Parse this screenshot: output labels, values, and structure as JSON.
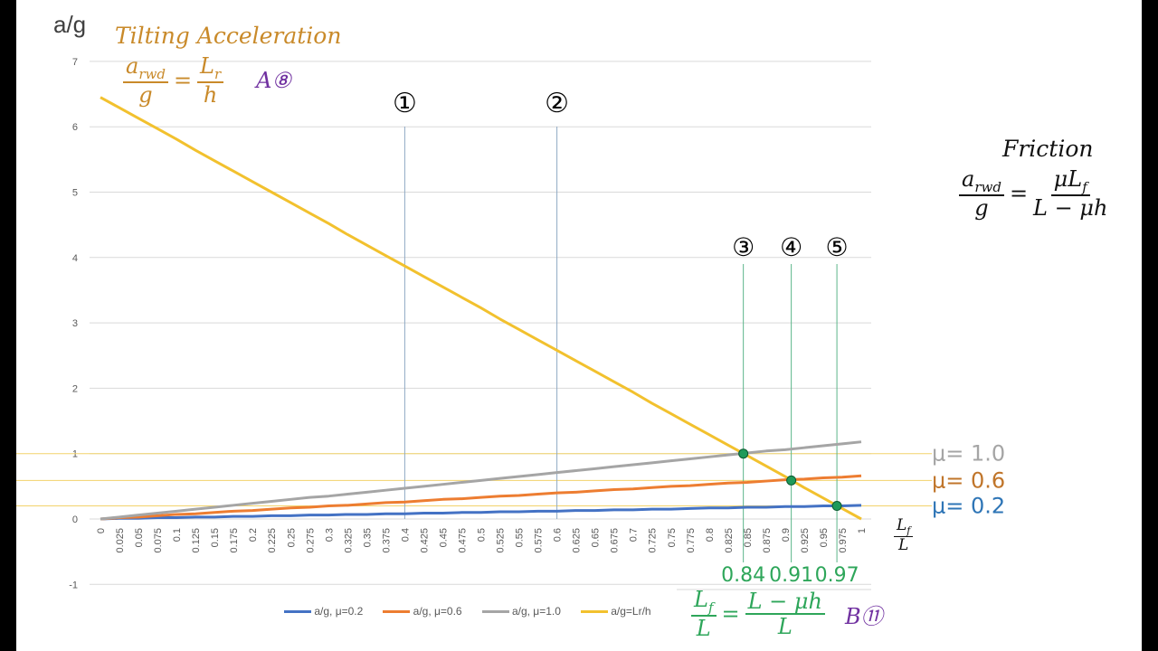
{
  "chart_data": {
    "type": "line",
    "ylabel": "a/g",
    "xlabel_num": "L",
    "xlabel_num_sub": "f",
    "xlabel_den": "L",
    "ylim": [
      -1,
      7
    ],
    "yticks": [
      "-1",
      "0",
      "1",
      "2",
      "3",
      "4",
      "5",
      "6",
      "7"
    ],
    "x": [
      0,
      0.025,
      0.05,
      0.075,
      0.1,
      0.125,
      0.15,
      0.175,
      0.2,
      0.225,
      0.25,
      0.275,
      0.3,
      0.325,
      0.35,
      0.375,
      0.4,
      0.425,
      0.45,
      0.475,
      0.5,
      0.525,
      0.55,
      0.575,
      0.6,
      0.625,
      0.65,
      0.675,
      0.7,
      0.725,
      0.75,
      0.775,
      0.8,
      0.825,
      0.85,
      0.875,
      0.9,
      0.925,
      0.95,
      0.975,
      1
    ],
    "grid": "horizontal",
    "legend": "bottom",
    "series": [
      {
        "name": "a/g, μ=0.2",
        "color": "#4472c4",
        "values": [
          0,
          0.01,
          0.01,
          0.02,
          0.02,
          0.03,
          0.03,
          0.04,
          0.04,
          0.05,
          0.05,
          0.06,
          0.06,
          0.07,
          0.07,
          0.08,
          0.08,
          0.09,
          0.09,
          0.1,
          0.1,
          0.11,
          0.11,
          0.12,
          0.12,
          0.13,
          0.13,
          0.14,
          0.14,
          0.15,
          0.15,
          0.16,
          0.17,
          0.17,
          0.18,
          0.18,
          0.19,
          0.19,
          0.2,
          0.2,
          0.21
        ]
      },
      {
        "name": "a/g, μ=0.6",
        "color": "#ed7d31",
        "values": [
          0,
          0.02,
          0.03,
          0.05,
          0.07,
          0.08,
          0.1,
          0.12,
          0.13,
          0.15,
          0.17,
          0.18,
          0.2,
          0.21,
          0.23,
          0.25,
          0.26,
          0.28,
          0.3,
          0.31,
          0.33,
          0.35,
          0.36,
          0.38,
          0.4,
          0.41,
          0.43,
          0.45,
          0.46,
          0.48,
          0.5,
          0.51,
          0.53,
          0.55,
          0.56,
          0.58,
          0.6,
          0.61,
          0.63,
          0.64,
          0.66
        ]
      },
      {
        "name": "a/g, μ=1.0",
        "color": "#a5a5a5",
        "values": [
          0,
          0.03,
          0.06,
          0.09,
          0.12,
          0.15,
          0.18,
          0.21,
          0.24,
          0.27,
          0.3,
          0.33,
          0.35,
          0.38,
          0.41,
          0.44,
          0.47,
          0.5,
          0.53,
          0.56,
          0.59,
          0.62,
          0.65,
          0.68,
          0.71,
          0.74,
          0.77,
          0.8,
          0.83,
          0.86,
          0.89,
          0.92,
          0.95,
          0.98,
          1.01,
          1.04,
          1.06,
          1.09,
          1.12,
          1.15,
          1.18
        ]
      },
      {
        "name": "a/g=Lr/h",
        "color": "#f2c12e",
        "values": [
          6.45,
          6.29,
          6.13,
          5.97,
          5.81,
          5.64,
          5.48,
          5.32,
          5.16,
          5.0,
          4.84,
          4.68,
          4.52,
          4.35,
          4.19,
          4.03,
          3.87,
          3.71,
          3.55,
          3.39,
          3.23,
          3.06,
          2.9,
          2.74,
          2.58,
          2.42,
          2.26,
          2.1,
          1.94,
          1.77,
          1.61,
          1.45,
          1.29,
          1.13,
          0.97,
          0.81,
          0.65,
          0.48,
          0.32,
          0.16,
          0
        ]
      }
    ],
    "markers": [
      {
        "x": 0.845,
        "y": 1.0
      },
      {
        "x": 0.908,
        "y": 0.59
      },
      {
        "x": 0.968,
        "y": 0.2
      }
    ],
    "annotations": {
      "vlines_blue": [
        {
          "x": 0.4,
          "label": "①"
        },
        {
          "x": 0.6,
          "label": "②"
        }
      ],
      "vlines_green": [
        {
          "x": 0.845,
          "label": "③",
          "value": "0.84"
        },
        {
          "x": 0.908,
          "label": "④",
          "value": "0.91"
        },
        {
          "x": 0.968,
          "label": "⑤",
          "value": "0.97"
        }
      ],
      "hlines": [
        {
          "y": 1.0,
          "label": "μ= 1.0",
          "color": "#a5a5a5"
        },
        {
          "y": 0.59,
          "label": "μ= 0.6",
          "color": "#c0752a"
        },
        {
          "y": 0.2,
          "label": "μ= 0.2",
          "color": "#2e75b6"
        }
      ],
      "tilting": {
        "title": "Tilting Acceleration",
        "num": "a",
        "num_sub": "rwd",
        "den": "g",
        "eq": "=",
        "rnum": "L",
        "rnum_sub": "r",
        "rden": "h",
        "tag": "A⑧",
        "color": "#c98a2a"
      },
      "friction": {
        "title": "Friction",
        "num": "a",
        "num_sub": "rwd",
        "den": "g",
        "eq": "=",
        "rnum": "μL",
        "rnum_sub": "f",
        "rden": "L − μh"
      },
      "ratio": {
        "num": "L",
        "num_sub": "f",
        "den": "L",
        "eq": "=",
        "rnum": "L − μh",
        "rden": "L",
        "tag": "B⑪",
        "color": "#2ea65a"
      }
    }
  }
}
